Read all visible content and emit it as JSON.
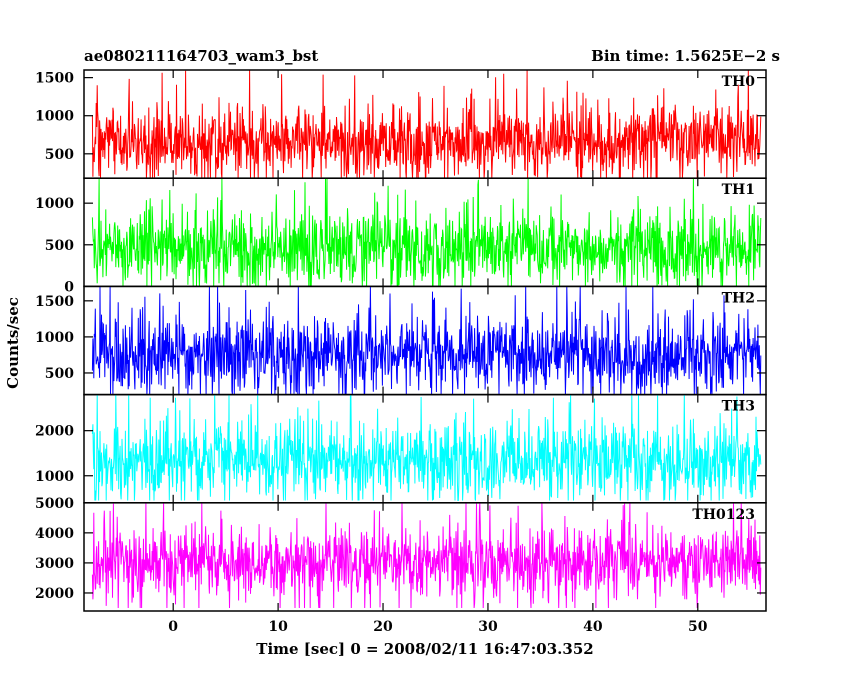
{
  "header": {
    "left_title": "ae080211164703_wam3_bst",
    "right_title": "Bin time: 1.5625E−2 s"
  },
  "chart_data": {
    "type": "line",
    "xlabel": "Time [sec] 0 = 2008/02/11 16:47:03.352",
    "ylabel": "Counts/sec",
    "bin_time_s": 0.015625,
    "xlim": [
      -8.5,
      56.5
    ],
    "data_x_range": [
      -7.7,
      56.0
    ],
    "x_ticks": [
      0,
      10,
      20,
      30,
      40,
      50
    ],
    "x_tick_labels": [
      "0",
      "10",
      "20",
      "30",
      "40",
      "50"
    ],
    "grid": false,
    "series": [
      {
        "name": "TH0",
        "color": "#ff0000",
        "ylim": [
          180,
          1600
        ],
        "y_ticks": [
          500,
          1000,
          1500
        ],
        "y_tick_labels": [
          "500",
          "1000",
          "1500"
        ],
        "mean": 680,
        "typical_low": 220,
        "typical_high": 1200,
        "min": 180,
        "max": 1600
      },
      {
        "name": "TH1",
        "color": "#00ff00",
        "ylim": [
          0,
          1300
        ],
        "y_ticks": [
          0,
          500,
          1000
        ],
        "y_tick_labels": [
          "0",
          "500",
          "1000"
        ],
        "mean": 460,
        "typical_low": 60,
        "typical_high": 1000,
        "min": 0,
        "max": 1300
      },
      {
        "name": "TH2",
        "color": "#0000ff",
        "ylim": [
          200,
          1700
        ],
        "y_ticks": [
          500,
          1000,
          1500
        ],
        "y_tick_labels": [
          "500",
          "1000",
          "1500"
        ],
        "mean": 760,
        "typical_low": 280,
        "typical_high": 1450,
        "min": 200,
        "max": 1700
      },
      {
        "name": "TH3",
        "color": "#00ffff",
        "ylim": [
          400,
          2800
        ],
        "y_ticks": [
          1000,
          2000
        ],
        "y_tick_labels": [
          "1000",
          "2000"
        ],
        "mean": 1350,
        "typical_low": 620,
        "typical_high": 2400,
        "min": 450,
        "max": 2800
      },
      {
        "name": "TH0123",
        "color": "#ff00ff",
        "ylim": [
          1400,
          5000
        ],
        "y_ticks": [
          2000,
          3000,
          4000,
          5000
        ],
        "y_tick_labels": [
          "2000",
          "3000",
          "4000",
          "5000"
        ],
        "mean": 3050,
        "typical_low": 1900,
        "typical_high": 4400,
        "min": 1500,
        "max": 5000
      }
    ]
  }
}
